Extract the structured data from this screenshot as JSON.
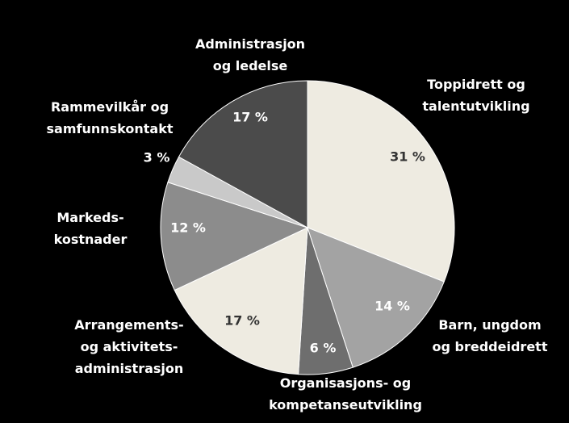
{
  "chart_data": {
    "type": "pie",
    "categories": [
      "Toppidrett og\ntalentutvikling",
      "Barn, ungdom\nog breddeidrett",
      "Organisasjons- og\nkompetanseutvikling",
      "Arrangements-\nog aktivitets-\nadministrasjon",
      "Markeds-\nkostnader",
      "Rammevilkår og\nsamfunnskontakt",
      "Administrasjon\nog ledelse"
    ],
    "values": [
      31,
      14,
      6,
      17,
      12,
      3,
      17
    ],
    "value_labels": [
      "31 %",
      "14 %",
      "6 %",
      "17 %",
      "12 %",
      "3 %",
      "17 %"
    ],
    "colors": [
      "#eeebe1",
      "#a3a3a3",
      "#6e6e6e",
      "#eeebe1",
      "#8c8c8c",
      "#c9c9c9",
      "#4b4b4b"
    ]
  }
}
